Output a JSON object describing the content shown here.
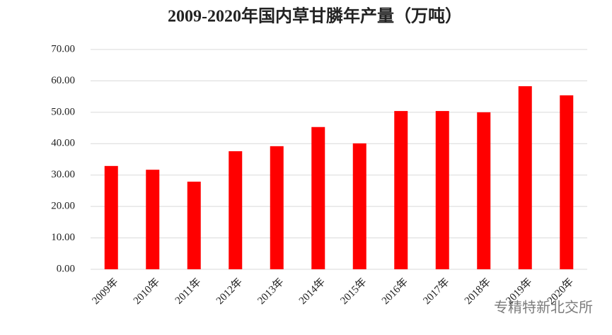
{
  "chart_data": {
    "type": "bar",
    "title": "2009-2020年国内草甘膦年产量（万吨）",
    "categories": [
      "2009年",
      "2010年",
      "2011年",
      "2012年",
      "2013年",
      "2014年",
      "2015年",
      "2016年",
      "2017年",
      "2018年",
      "2019年",
      "2020年"
    ],
    "values": [
      32.9,
      31.7,
      27.9,
      37.6,
      39.2,
      45.3,
      40.1,
      50.4,
      50.4,
      50.0,
      58.3,
      55.4
    ],
    "color": "#ff0000",
    "ylim": [
      0,
      70
    ],
    "yticks": [
      {
        "value": 0,
        "label": "0.00"
      },
      {
        "value": 10,
        "label": "10.00"
      },
      {
        "value": 20,
        "label": "20.00"
      },
      {
        "value": 30,
        "label": "30.00"
      },
      {
        "value": 40,
        "label": "40.00"
      },
      {
        "value": 50,
        "label": "50.00"
      },
      {
        "value": 60,
        "label": "60.00"
      },
      {
        "value": 70,
        "label": "70.00"
      }
    ],
    "grid": true,
    "watermark": "专精特新北交所"
  }
}
